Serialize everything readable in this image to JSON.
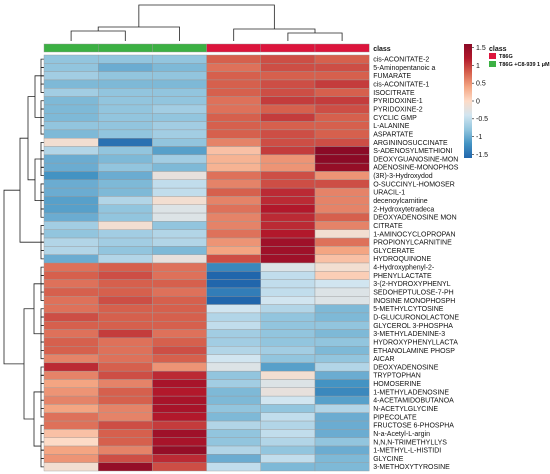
{
  "chart_data": {
    "type": "heatmap",
    "title": "",
    "annotation_row_label": "class",
    "legend": {
      "title": "class",
      "groups": [
        {
          "name": "T86G",
          "color": "#dc143c"
        },
        {
          "name": "T86G +C8-939 1 μM",
          "color": "#3cb043"
        }
      ]
    },
    "colorbar": {
      "ticks": [
        1.5,
        1,
        0.5,
        0,
        -0.5,
        -1,
        -1.5
      ],
      "range": [
        -1.6,
        1.6
      ],
      "colors": [
        "#2166ac",
        "#4393c3",
        "#92c5de",
        "#d1e5f0",
        "#fddbc7",
        "#f4a582",
        "#d6604d",
        "#b2182b",
        "#8b0a26"
      ]
    },
    "column_groups": [
      1,
      1,
      1,
      0,
      0,
      0
    ],
    "rows": [
      "cis-ACONITATE-2",
      "5-Aminopentanoic a",
      "FUMARATE",
      "cis-ACONITATE-1",
      "ISOCITRATE",
      "PYRIDOXINE-1",
      "PYRIDOXINE-2",
      "CYCLIC GMP",
      "L-ALANINE",
      "ASPARTATE",
      "ARGININOSUCCINATE",
      "S-ADENOSYLMETHIONI",
      "DEOXYGUANOSINE-MON",
      "ADENOSINE-MONOPHOS",
      "(3R)-3-Hydroxydod",
      "O-SUCCINYL-HOMOSER",
      "URACIL-1",
      "decenoylcarnitine",
      "2-Hydroxytetradeca",
      "DEOXYADENOSINE MON",
      "CITRATE",
      "1-AMINOCYCLOPROPAN",
      "PROPIONYLCARNITINE",
      "GLYCERATE",
      "HYDROQUINONE",
      "4-Hydroxyphenyl-2-",
      "PHENYLLACTATE",
      "3-(2-HYDROXYPHENYL",
      "SEDOHEPTULOSE-7-PH",
      "INOSINE MONOPHOSPH",
      "5-METHYLCYTOSINE",
      "D-GLUCURONOLACTONE",
      "GLYCEROL 3-PHOSPHA",
      "3-METHYLADENINE-3",
      "HYDROXYPHENYLLACTA",
      "ETHANOLAMINE PHOSP",
      "AICAR",
      "DEOXYADENOSINE",
      "TRYPTOPHAN",
      "HOMOSERINE",
      "1-METHYLADENOSINE",
      "4-ACETAMIDOBUTANOA",
      "N-ACETYLGLYCINE",
      "PIPECOLATE",
      "FRUCTOSE 6-PHOSPHA",
      "N-a-Acetyl-L-argin",
      "N,N,N-TRIMETHYLLYS",
      "1-METHYL-L-HISTIDI",
      "GLYCINE",
      "3-METHOXYTYROSINE"
    ],
    "values": [
      [
        -0.8,
        -0.8,
        -0.8,
        0.8,
        0.9,
        0.8
      ],
      [
        -0.8,
        -1.0,
        -0.9,
        0.7,
        0.9,
        0.9
      ],
      [
        -0.7,
        -0.8,
        -0.8,
        0.8,
        0.8,
        0.8
      ],
      [
        -0.9,
        -0.9,
        -0.9,
        0.8,
        0.9,
        1.0
      ],
      [
        -0.7,
        -0.8,
        -0.8,
        0.8,
        0.9,
        0.8
      ],
      [
        -0.9,
        -0.8,
        -0.8,
        0.7,
        1.0,
        1.0
      ],
      [
        -0.9,
        -0.8,
        -0.7,
        0.7,
        0.8,
        0.9
      ],
      [
        -0.9,
        -0.8,
        -0.8,
        0.8,
        1.0,
        0.8
      ],
      [
        -0.8,
        -0.8,
        -0.7,
        0.8,
        0.8,
        0.8
      ],
      [
        -0.9,
        -0.8,
        -0.7,
        0.8,
        0.9,
        0.8
      ],
      [
        -0.1,
        -1.5,
        -0.8,
        0.6,
        0.9,
        0.9
      ],
      [
        -0.6,
        -0.8,
        -1.1,
        0.2,
        1.0,
        1.6
      ],
      [
        -1.0,
        -0.9,
        -0.7,
        0.3,
        0.5,
        1.6
      ],
      [
        -1.0,
        -0.8,
        -0.9,
        0.3,
        0.5,
        1.5
      ],
      [
        -1.2,
        -1.0,
        -0.2,
        0.7,
        0.9,
        0.5
      ],
      [
        -1.0,
        -0.9,
        -0.5,
        0.6,
        0.9,
        0.9
      ],
      [
        -1.0,
        -0.9,
        -0.5,
        0.8,
        1.1,
        0.6
      ],
      [
        -1.1,
        -0.6,
        -0.1,
        0.6,
        1.1,
        0.6
      ],
      [
        -1.1,
        -0.8,
        -0.3,
        0.7,
        1.2,
        0.6
      ],
      [
        -1.0,
        -0.8,
        -0.3,
        0.6,
        1.1,
        0.8
      ],
      [
        -0.7,
        -0.1,
        -0.8,
        0.6,
        1.1,
        0.6
      ],
      [
        -0.8,
        -0.7,
        -0.6,
        0.7,
        1.2,
        -0.1
      ],
      [
        -0.6,
        -0.7,
        -0.6,
        0.5,
        1.4,
        0.7
      ],
      [
        -0.6,
        -0.8,
        -0.9,
        0.4,
        1.4,
        0.4
      ],
      [
        -1.0,
        -0.6,
        -0.2,
        0.9,
        1.4,
        0.2
      ],
      [
        0.7,
        0.8,
        0.7,
        -1.3,
        -0.3,
        -0.1
      ],
      [
        0.8,
        0.9,
        0.7,
        -1.6,
        -0.5,
        0.1
      ],
      [
        0.7,
        0.8,
        0.8,
        -1.6,
        -0.5,
        -0.4
      ],
      [
        0.8,
        0.8,
        0.7,
        -1.4,
        -0.5,
        -0.3
      ],
      [
        0.7,
        0.9,
        0.8,
        -1.7,
        -0.4,
        -0.3
      ],
      [
        0.7,
        0.8,
        0.8,
        -0.4,
        -0.6,
        -0.9
      ],
      [
        0.9,
        0.8,
        0.8,
        -0.6,
        -0.8,
        -0.9
      ],
      [
        0.8,
        0.8,
        0.8,
        -0.5,
        -0.8,
        -0.8
      ],
      [
        0.7,
        1.0,
        0.7,
        -0.7,
        -0.8,
        -0.9
      ],
      [
        0.8,
        0.7,
        0.8,
        -0.7,
        -0.8,
        -0.8
      ],
      [
        0.8,
        0.7,
        0.9,
        -0.6,
        -0.7,
        -0.9
      ],
      [
        0.6,
        0.7,
        0.8,
        -0.4,
        -0.8,
        -0.8
      ],
      [
        1.1,
        0.8,
        0.5,
        -0.3,
        -1.1,
        -0.6
      ],
      [
        0.6,
        0.9,
        1.1,
        -0.8,
        -0.1,
        -1.0
      ],
      [
        0.4,
        0.6,
        1.3,
        -0.7,
        -0.3,
        -1.2
      ],
      [
        0.5,
        0.8,
        1.2,
        -0.9,
        -0.2,
        -1.3
      ],
      [
        0.6,
        0.8,
        1.3,
        -0.9,
        -0.4,
        -1.1
      ],
      [
        0.4,
        0.6,
        1.3,
        -0.8,
        -0.8,
        -0.6
      ],
      [
        0.7,
        0.6,
        1.2,
        -0.9,
        -0.5,
        -1.0
      ],
      [
        0.7,
        0.9,
        1.0,
        -0.6,
        -0.6,
        -1.0
      ],
      [
        0.2,
        0.8,
        1.4,
        -0.8,
        -0.5,
        -1.0
      ],
      [
        0.0,
        0.8,
        1.3,
        -0.8,
        -0.6,
        -0.8
      ],
      [
        0.4,
        0.6,
        1.5,
        -0.6,
        -0.8,
        -1.0
      ],
      [
        0.5,
        0.9,
        1.1,
        -1.0,
        -0.5,
        -0.9
      ],
      [
        -0.1,
        1.5,
        0.9,
        -0.5,
        -0.9,
        -0.9
      ]
    ]
  }
}
